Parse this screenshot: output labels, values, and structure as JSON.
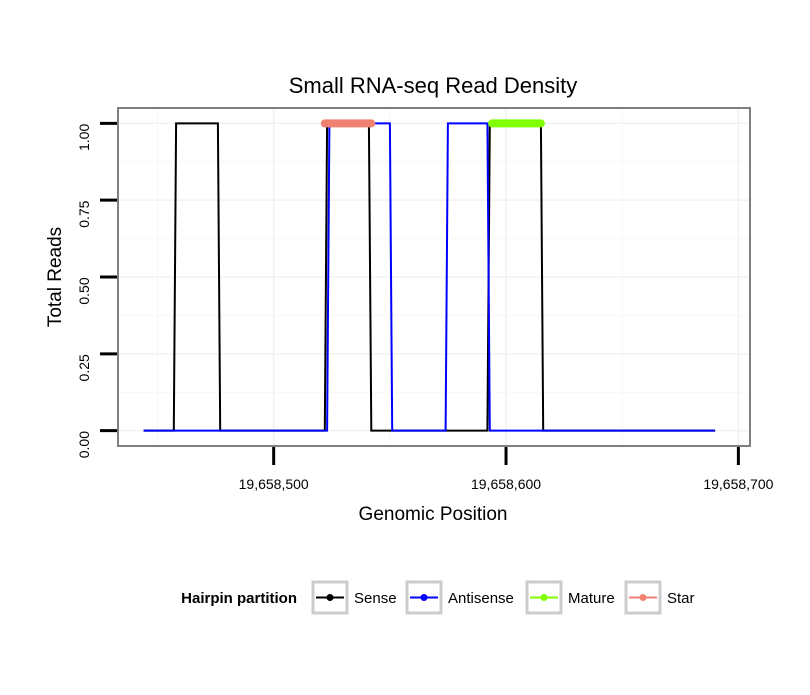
{
  "chart_data": {
    "type": "line",
    "title": "Small RNA-seq Read Density",
    "xlabel": "Genomic Position",
    "ylabel": "Total Reads",
    "xlim": [
      19658433,
      19658705
    ],
    "ylim": [
      -0.05,
      1.05
    ],
    "x_ticks": [
      19658500,
      19658600,
      19658700
    ],
    "x_tick_labels": [
      "19,658,500",
      "19,658,600",
      "19,658,700"
    ],
    "y_ticks": [
      0,
      0.25,
      0.5,
      0.75,
      1.0
    ],
    "y_tick_labels": [
      "0.00",
      "0.25",
      "0.50",
      "0.75",
      "1.00"
    ],
    "grid": true,
    "legend": {
      "title": "Hairpin partition",
      "position": "bottom",
      "entries": [
        "Sense",
        "Antisense",
        "Mature",
        "Star"
      ]
    },
    "series": [
      {
        "name": "Sense",
        "color": "#000000",
        "x": [
          19658444,
          19658457,
          19658458,
          19658476,
          19658477,
          19658522,
          19658523,
          19658541,
          19658542,
          19658592,
          19658593,
          19658615,
          19658616,
          19658690
        ],
        "y": [
          0,
          0,
          1,
          1,
          0,
          0,
          1,
          1,
          0,
          0,
          1,
          1,
          0,
          0
        ]
      },
      {
        "name": "Antisense",
        "color": "#0000ff",
        "x": [
          19658444,
          19658457,
          19658458,
          19658476,
          19658477,
          19658523,
          19658524,
          19658550,
          19658551,
          19658574,
          19658575,
          19658592,
          19658593,
          19658690
        ],
        "y": [
          0,
          0,
          0,
          0,
          0,
          0,
          1,
          1,
          0,
          0,
          1,
          1,
          0,
          0
        ]
      },
      {
        "name": "Mature",
        "color": "#7fff00",
        "x": [
          19658594,
          19658615
        ],
        "y": [
          1,
          1
        ]
      },
      {
        "name": "Star",
        "color": "#f08070",
        "x": [
          19658522,
          19658542
        ],
        "y": [
          1,
          1
        ]
      }
    ]
  }
}
